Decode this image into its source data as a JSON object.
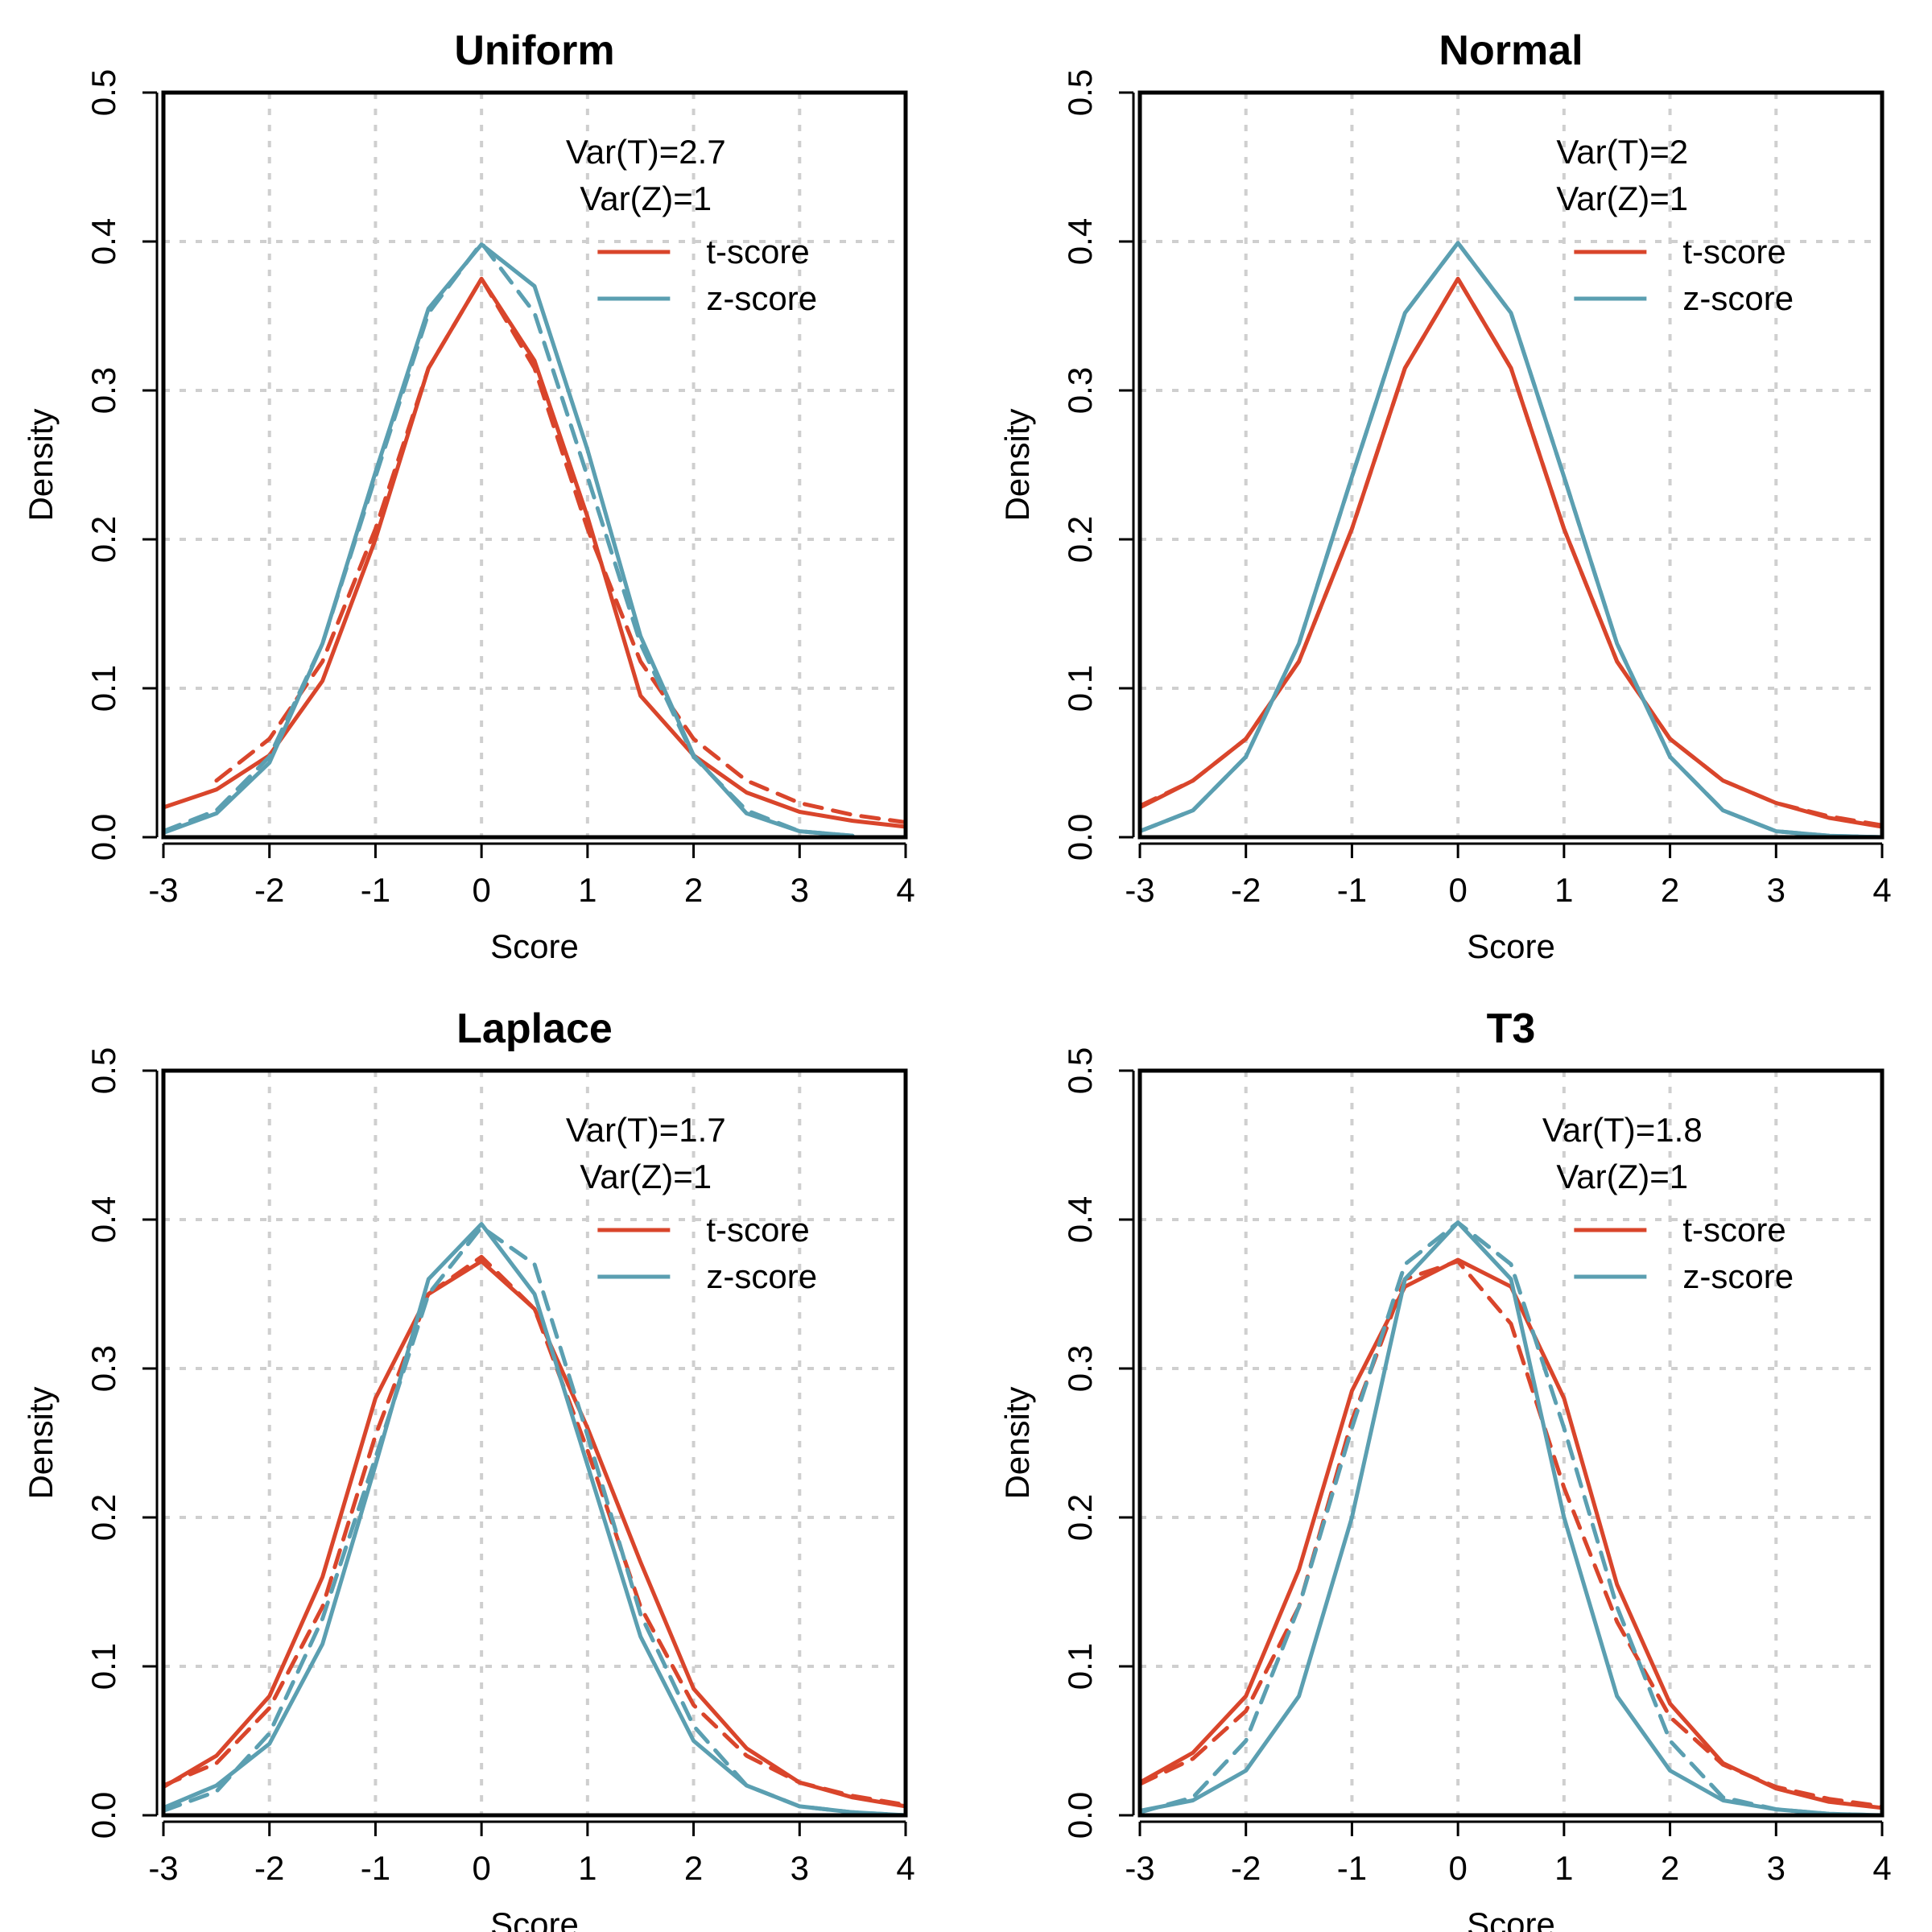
{
  "colors": {
    "t_score": "#d9452b",
    "z_score": "#5b9fb1"
  },
  "chart_data": [
    {
      "type": "line",
      "title": "Uniform",
      "xlabel": "Score",
      "ylabel": "Density",
      "xlim": [
        -3,
        4
      ],
      "ylim": [
        0,
        0.5
      ],
      "xticks": [
        "-3",
        "-2",
        "-1",
        "0",
        "1",
        "2",
        "3",
        "4"
      ],
      "yticks": [
        "0.0",
        "0.1",
        "0.2",
        "0.3",
        "0.4",
        "0.5"
      ],
      "grid": true,
      "annotations": [
        "Var(T)=2.7",
        "Var(Z)=1"
      ],
      "legend": {
        "position": "top-right",
        "entries": [
          "t-score",
          "z-score"
        ]
      },
      "series": [
        {
          "name": "t-score",
          "style": "solid",
          "color": "#d9452b",
          "x": [
            -3,
            -2.5,
            -2,
            -1.5,
            -1,
            -0.5,
            0,
            0.5,
            1,
            1.5,
            2,
            2.5,
            3,
            3.5,
            4
          ],
          "y": [
            0.02,
            0.032,
            0.055,
            0.105,
            0.2,
            0.315,
            0.375,
            0.32,
            0.215,
            0.095,
            0.055,
            0.03,
            0.017,
            0.011,
            0.007
          ]
        },
        {
          "name": "t-score (reference)",
          "style": "dashed",
          "color": "#d9452b",
          "x": [
            -2.5,
            -2,
            -1.5,
            -1,
            -0.5,
            0,
            0.5,
            1,
            1.5,
            2,
            2.5,
            3,
            3.5,
            4
          ],
          "y": [
            0.038,
            0.066,
            0.118,
            0.207,
            0.315,
            0.375,
            0.315,
            0.207,
            0.118,
            0.066,
            0.038,
            0.023,
            0.015,
            0.01
          ]
        },
        {
          "name": "z-score",
          "style": "solid",
          "color": "#5b9fb1",
          "x": [
            -3,
            -2.5,
            -2,
            -1.5,
            -1,
            -0.5,
            0,
            0.5,
            1,
            1.5,
            2,
            2.5,
            3,
            3.5
          ],
          "y": [
            0.003,
            0.016,
            0.05,
            0.13,
            0.245,
            0.355,
            0.398,
            0.37,
            0.26,
            0.135,
            0.055,
            0.016,
            0.004,
            0.001
          ]
        },
        {
          "name": "z-score (reference)",
          "style": "dashed",
          "color": "#5b9fb1",
          "x": [
            -3,
            -2.5,
            -2,
            -1.5,
            -1,
            -0.5,
            0,
            0.5,
            1,
            1.5,
            2,
            2.5,
            3,
            3.5
          ],
          "y": [
            0.004,
            0.018,
            0.054,
            0.13,
            0.242,
            0.352,
            0.399,
            0.352,
            0.242,
            0.13,
            0.054,
            0.018,
            0.004,
            0.001
          ]
        }
      ]
    },
    {
      "type": "line",
      "title": "Normal",
      "xlabel": "Score",
      "ylabel": "Density",
      "xlim": [
        -3,
        4
      ],
      "ylim": [
        0,
        0.5
      ],
      "xticks": [
        "-3",
        "-2",
        "-1",
        "0",
        "1",
        "2",
        "3",
        "4"
      ],
      "yticks": [
        "0.0",
        "0.1",
        "0.2",
        "0.3",
        "0.4",
        "0.5"
      ],
      "grid": true,
      "annotations": [
        "Var(T)=2",
        "Var(Z)=1"
      ],
      "legend": {
        "position": "top-right",
        "entries": [
          "t-score",
          "z-score"
        ]
      },
      "series": [
        {
          "name": "t-score",
          "style": "solid",
          "color": "#d9452b",
          "x": [
            -3,
            -2.5,
            -2,
            -1.5,
            -1,
            -0.5,
            0,
            0.5,
            1,
            1.5,
            2,
            2.5,
            3,
            3.5,
            4
          ],
          "y": [
            0.02,
            0.038,
            0.066,
            0.118,
            0.207,
            0.315,
            0.375,
            0.315,
            0.207,
            0.118,
            0.066,
            0.038,
            0.023,
            0.013,
            0.007
          ]
        },
        {
          "name": "t-score (reference)",
          "style": "dashed",
          "color": "#d9452b",
          "x": [
            -3,
            -2.5,
            -2,
            -1.5,
            -1,
            -0.5,
            0,
            0.5,
            1,
            1.5,
            2,
            2.5,
            3,
            3.5,
            4
          ],
          "y": [
            0.021,
            0.038,
            0.066,
            0.118,
            0.207,
            0.315,
            0.375,
            0.315,
            0.207,
            0.118,
            0.066,
            0.038,
            0.023,
            0.014,
            0.008
          ]
        },
        {
          "name": "z-score",
          "style": "solid",
          "color": "#5b9fb1",
          "x": [
            -3,
            -2.5,
            -2,
            -1.5,
            -1,
            -0.5,
            0,
            0.5,
            1,
            1.5,
            2,
            2.5,
            3,
            3.5,
            4
          ],
          "y": [
            0.004,
            0.018,
            0.054,
            0.13,
            0.242,
            0.352,
            0.399,
            0.352,
            0.242,
            0.13,
            0.054,
            0.018,
            0.004,
            0.001,
            0
          ]
        },
        {
          "name": "z-score (reference)",
          "style": "dashed",
          "color": "#5b9fb1",
          "x": [
            -3,
            -2.5,
            -2,
            -1.5,
            -1,
            -0.5,
            0,
            0.5,
            1,
            1.5,
            2,
            2.5,
            3,
            3.5,
            4
          ],
          "y": [
            0.004,
            0.018,
            0.054,
            0.13,
            0.242,
            0.352,
            0.399,
            0.352,
            0.242,
            0.13,
            0.054,
            0.018,
            0.004,
            0.001,
            0
          ]
        }
      ]
    },
    {
      "type": "line",
      "title": "Laplace",
      "xlabel": "Score",
      "ylabel": "Density",
      "xlim": [
        -3,
        4
      ],
      "ylim": [
        0,
        0.5
      ],
      "xticks": [
        "-3",
        "-2",
        "-1",
        "0",
        "1",
        "2",
        "3",
        "4"
      ],
      "yticks": [
        "0.0",
        "0.1",
        "0.2",
        "0.3",
        "0.4",
        "0.5"
      ],
      "grid": true,
      "annotations": [
        "Var(T)=1.7",
        "Var(Z)=1"
      ],
      "legend": {
        "position": "top-right",
        "entries": [
          "t-score",
          "z-score"
        ]
      },
      "series": [
        {
          "name": "t-score",
          "style": "solid",
          "color": "#d9452b",
          "x": [
            -3,
            -2.5,
            -2,
            -1.5,
            -1,
            -0.5,
            0,
            0.5,
            1,
            1.5,
            2,
            2.5,
            3,
            3.5,
            4
          ],
          "y": [
            0.019,
            0.04,
            0.08,
            0.16,
            0.28,
            0.35,
            0.372,
            0.34,
            0.26,
            0.17,
            0.085,
            0.045,
            0.022,
            0.012,
            0.006
          ]
        },
        {
          "name": "t-score (reference)",
          "style": "dashed",
          "color": "#d9452b",
          "x": [
            -3,
            -2.5,
            -2,
            -1.5,
            -1,
            -0.5,
            0,
            0.5,
            1,
            1.5,
            2,
            2.5,
            3,
            3.5,
            4
          ],
          "y": [
            0.02,
            0.035,
            0.072,
            0.14,
            0.255,
            0.35,
            0.375,
            0.34,
            0.245,
            0.14,
            0.074,
            0.04,
            0.022,
            0.013,
            0.007
          ]
        },
        {
          "name": "z-score",
          "style": "solid",
          "color": "#5b9fb1",
          "x": [
            -3,
            -2.5,
            -2,
            -1.5,
            -1,
            -0.5,
            0,
            0.5,
            1,
            1.5,
            2,
            2.5,
            3,
            3.5,
            4
          ],
          "y": [
            0.005,
            0.02,
            0.048,
            0.115,
            0.235,
            0.36,
            0.397,
            0.35,
            0.235,
            0.12,
            0.05,
            0.02,
            0.006,
            0.002,
            0
          ]
        },
        {
          "name": "z-score (reference)",
          "style": "dashed",
          "color": "#5b9fb1",
          "x": [
            -3,
            -2.5,
            -2,
            -1.5,
            -1,
            -0.5,
            0,
            0.5,
            1,
            1.5,
            2,
            2.5,
            3,
            3.5,
            4
          ],
          "y": [
            0.003,
            0.016,
            0.055,
            0.132,
            0.24,
            0.35,
            0.395,
            0.37,
            0.255,
            0.135,
            0.06,
            0.02,
            0.006,
            0.002,
            0
          ]
        }
      ]
    },
    {
      "type": "line",
      "title": "T3",
      "xlabel": "Score",
      "ylabel": "Density",
      "xlim": [
        -3,
        4
      ],
      "ylim": [
        0,
        0.5
      ],
      "xticks": [
        "-3",
        "-2",
        "-1",
        "0",
        "1",
        "2",
        "3",
        "4"
      ],
      "yticks": [
        "0.0",
        "0.1",
        "0.2",
        "0.3",
        "0.4",
        "0.5"
      ],
      "grid": true,
      "annotations": [
        "Var(T)=1.8",
        "Var(Z)=1"
      ],
      "legend": {
        "position": "top-right",
        "entries": [
          "t-score",
          "z-score"
        ]
      },
      "series": [
        {
          "name": "t-score",
          "style": "solid",
          "color": "#d9452b",
          "x": [
            -3,
            -2.5,
            -2,
            -1.5,
            -1,
            -0.5,
            0,
            0.5,
            1,
            1.5,
            2,
            2.5,
            3,
            3.5,
            4
          ],
          "y": [
            0.022,
            0.042,
            0.08,
            0.165,
            0.285,
            0.355,
            0.373,
            0.355,
            0.28,
            0.155,
            0.075,
            0.035,
            0.018,
            0.009,
            0.005
          ]
        },
        {
          "name": "t-score (reference)",
          "style": "dashed",
          "color": "#d9452b",
          "x": [
            -3,
            -2.5,
            -2,
            -1.5,
            -1,
            -0.5,
            0,
            0.5,
            1,
            1.5,
            2,
            2.5,
            3,
            3.5,
            4
          ],
          "y": [
            0.021,
            0.038,
            0.07,
            0.14,
            0.265,
            0.36,
            0.372,
            0.33,
            0.22,
            0.13,
            0.066,
            0.034,
            0.019,
            0.011,
            0.006
          ]
        },
        {
          "name": "z-score",
          "style": "solid",
          "color": "#5b9fb1",
          "x": [
            -3,
            -2.5,
            -2,
            -1.5,
            -1,
            -0.5,
            0,
            0.5,
            1,
            1.5,
            2,
            2.5,
            3,
            3.5,
            4
          ],
          "y": [
            0.003,
            0.01,
            0.03,
            0.08,
            0.2,
            0.36,
            0.398,
            0.36,
            0.2,
            0.08,
            0.03,
            0.01,
            0.004,
            0.001,
            0
          ]
        },
        {
          "name": "z-score (reference)",
          "style": "dashed",
          "color": "#5b9fb1",
          "x": [
            -3,
            -2.5,
            -2,
            -1.5,
            -1,
            -0.5,
            0,
            0.5,
            1,
            1.5,
            2,
            2.5,
            3,
            3.5,
            4
          ],
          "y": [
            0.002,
            0.012,
            0.05,
            0.14,
            0.26,
            0.37,
            0.398,
            0.37,
            0.26,
            0.14,
            0.05,
            0.012,
            0.004,
            0.001,
            0
          ]
        }
      ]
    }
  ]
}
